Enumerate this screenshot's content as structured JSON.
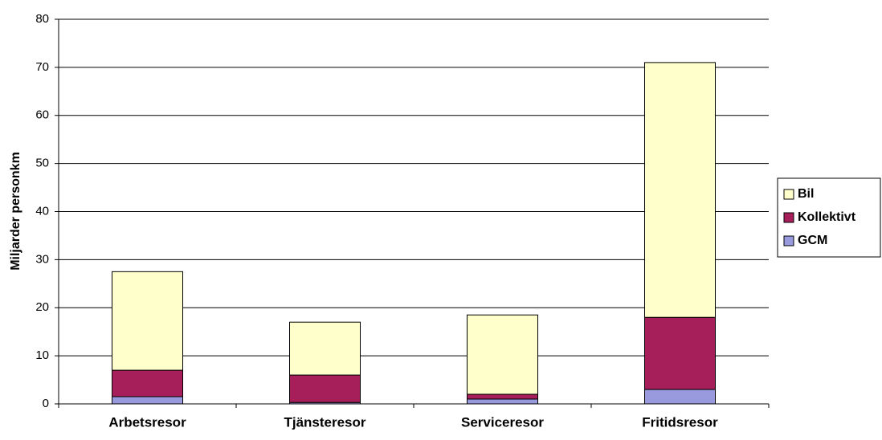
{
  "chart_data": {
    "type": "stacked_bar",
    "y_label": "Miljarder personkm",
    "categories": [
      "Arbetsresor",
      "Tjänsteresor",
      "Serviceresor",
      "Fritidsresor"
    ],
    "series": [
      {
        "name": "GCM",
        "color": "#9999dd",
        "values": [
          1.5,
          0.3,
          1.0,
          3.0
        ]
      },
      {
        "name": "Kollektivt",
        "color": "#a61e5a",
        "values": [
          5.5,
          5.7,
          1.0,
          15.0
        ]
      },
      {
        "name": "Bil",
        "color": "#ffffcc",
        "values": [
          20.5,
          11.0,
          16.5,
          53.0
        ]
      }
    ],
    "ylim": [
      0,
      80
    ],
    "yticks": [
      0,
      10,
      20,
      30,
      40,
      50,
      60,
      70,
      80
    ],
    "grid": true,
    "legend": "right"
  }
}
